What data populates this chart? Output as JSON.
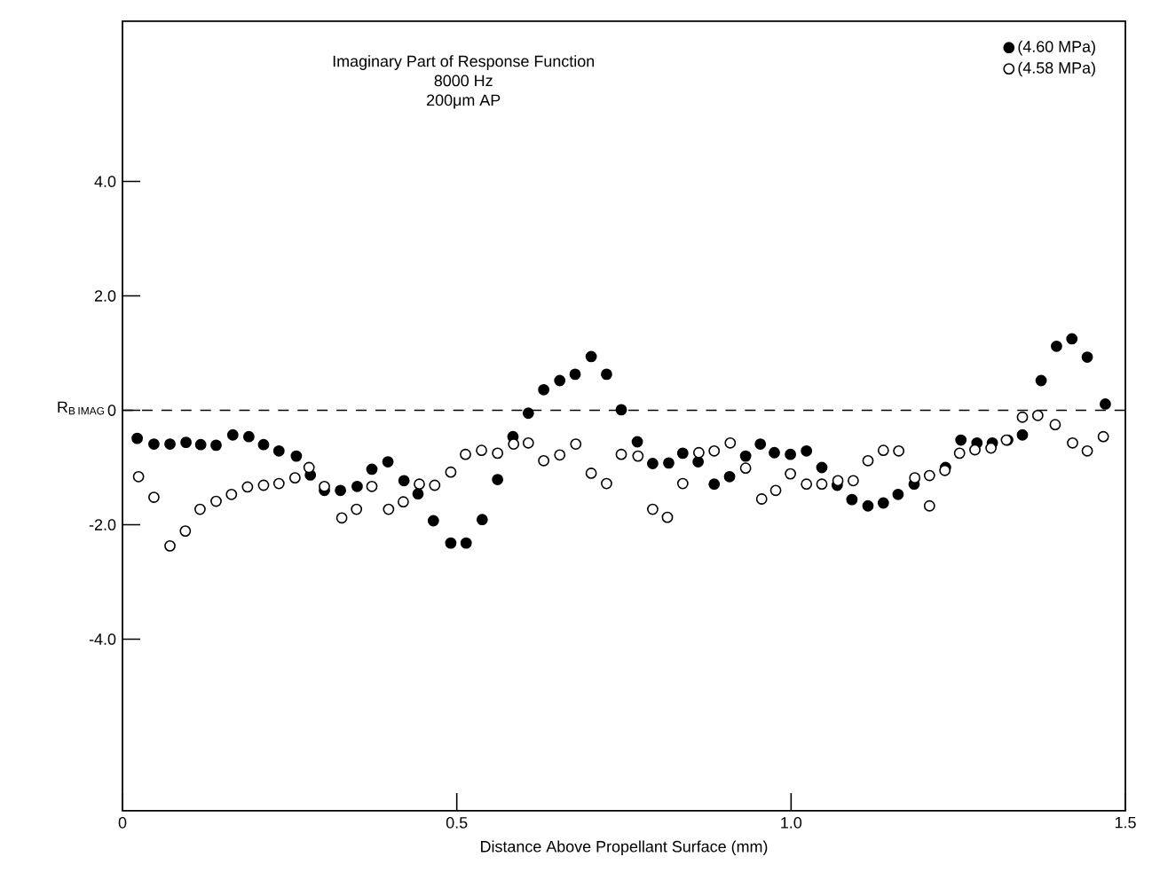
{
  "chart_data": {
    "type": "scatter",
    "title": "Imaginary Part of Response Function",
    "subtitle": "8000 Hz",
    "annotations": [
      "200μm AP"
    ],
    "xlabel": "Distance Above Propellant Surface (mm)",
    "ylabel": "\\mathrm{R}_{\\mathrm{B\\,IMAG}}",
    "xlim": [
      0,
      1.5
    ],
    "ylim": [
      -7,
      6.8
    ],
    "xticks": [
      0,
      0.5,
      {
        "value": 1.0,
        "label": "1.0"
      },
      1.5
    ],
    "yticks": [
      {
        "value": -4,
        "label": "-4.0"
      },
      {
        "value": -2,
        "label": "-2.0"
      },
      0,
      {
        "value": 2,
        "label": "2.0"
      },
      {
        "value": 4,
        "label": "4.0"
      }
    ],
    "ref_lines": [
      {
        "axis": "y",
        "value": 0,
        "line_style": "dashed"
      }
    ],
    "legend": "top right",
    "grid": false,
    "series": [
      {
        "name": "(4.60 MPa)",
        "color": "#000000",
        "x": [
          0.022,
          0.047,
          0.071,
          0.095,
          0.117,
          0.14,
          0.165,
          0.189,
          0.211,
          0.234,
          0.26,
          0.281,
          0.302,
          0.326,
          0.351,
          0.373,
          0.397,
          0.421,
          0.442,
          0.465,
          0.491,
          0.514,
          0.538,
          0.561,
          0.584,
          0.607,
          0.63,
          0.654,
          0.677,
          0.701,
          0.724,
          0.746,
          0.77,
          0.793,
          0.817,
          0.838,
          0.861,
          0.885,
          0.908,
          0.932,
          0.954,
          0.975,
          0.999,
          1.023,
          1.046,
          1.069,
          1.091,
          1.115,
          1.138,
          1.16,
          1.184,
          1.231,
          1.254,
          1.278,
          1.301,
          1.324,
          1.346,
          1.374,
          1.397,
          1.42,
          1.443,
          1.47
        ],
        "values": [
          -0.49,
          -0.59,
          -0.59,
          -0.56,
          -0.6,
          -0.61,
          -0.43,
          -0.46,
          -0.6,
          -0.71,
          -0.8,
          -1.13,
          -1.4,
          -1.4,
          -1.33,
          -1.03,
          -0.9,
          -1.23,
          -1.46,
          -1.93,
          -2.32,
          -2.32,
          -1.91,
          -1.21,
          -0.46,
          -0.05,
          0.36,
          0.52,
          0.63,
          0.94,
          0.63,
          0.01,
          -0.55,
          -0.93,
          -0.92,
          -0.75,
          -0.9,
          -1.29,
          -1.16,
          -0.8,
          -0.59,
          -0.74,
          -0.77,
          -0.71,
          -1.0,
          -1.31,
          -1.56,
          -1.67,
          -1.62,
          -1.47,
          -1.29,
          -1.0,
          -0.52,
          -0.57,
          -0.57,
          -0.52,
          -0.43,
          0.52,
          1.12,
          1.25,
          0.93,
          0.11
        ]
      },
      {
        "name": "(4.58 MPa)",
        "color": "#000000",
        "x": [
          0.024,
          0.047,
          0.071,
          0.094,
          0.116,
          0.14,
          0.163,
          0.187,
          0.211,
          0.234,
          0.258,
          0.279,
          0.302,
          0.328,
          0.35,
          0.373,
          0.398,
          0.42,
          0.444,
          0.467,
          0.491,
          0.513,
          0.537,
          0.561,
          0.585,
          0.607,
          0.63,
          0.654,
          0.678,
          0.701,
          0.724,
          0.746,
          0.771,
          0.793,
          0.815,
          0.838,
          0.862,
          0.885,
          0.909,
          0.932,
          0.956,
          0.977,
          0.999,
          1.023,
          1.046,
          1.07,
          1.093,
          1.115,
          1.138,
          1.161,
          1.185,
          1.207,
          1.207,
          1.23,
          1.252,
          1.275,
          1.299,
          1.322,
          1.346,
          1.369,
          1.395,
          1.421,
          1.443,
          1.467
        ],
        "values": [
          -1.16,
          -1.52,
          -2.37,
          -2.11,
          -1.73,
          -1.59,
          -1.47,
          -1.34,
          -1.31,
          -1.28,
          -1.18,
          -1.0,
          -1.33,
          -1.88,
          -1.73,
          -1.33,
          -1.73,
          -1.6,
          -1.29,
          -1.31,
          -1.08,
          -0.77,
          -0.7,
          -0.75,
          -0.59,
          -0.57,
          -0.88,
          -0.78,
          -0.59,
          -1.1,
          -1.28,
          -0.77,
          -0.8,
          -1.73,
          -1.87,
          -1.28,
          -0.74,
          -0.71,
          -0.57,
          -1.01,
          -1.55,
          -1.4,
          -1.11,
          -1.29,
          -1.29,
          -1.23,
          -1.23,
          -0.88,
          -0.7,
          -0.71,
          -1.18,
          -1.14,
          -1.67,
          -1.05,
          -0.75,
          -0.69,
          -0.66,
          -0.52,
          -0.12,
          -0.09,
          -0.25,
          -0.57,
          -0.71,
          -0.46
        ]
      }
    ]
  }
}
